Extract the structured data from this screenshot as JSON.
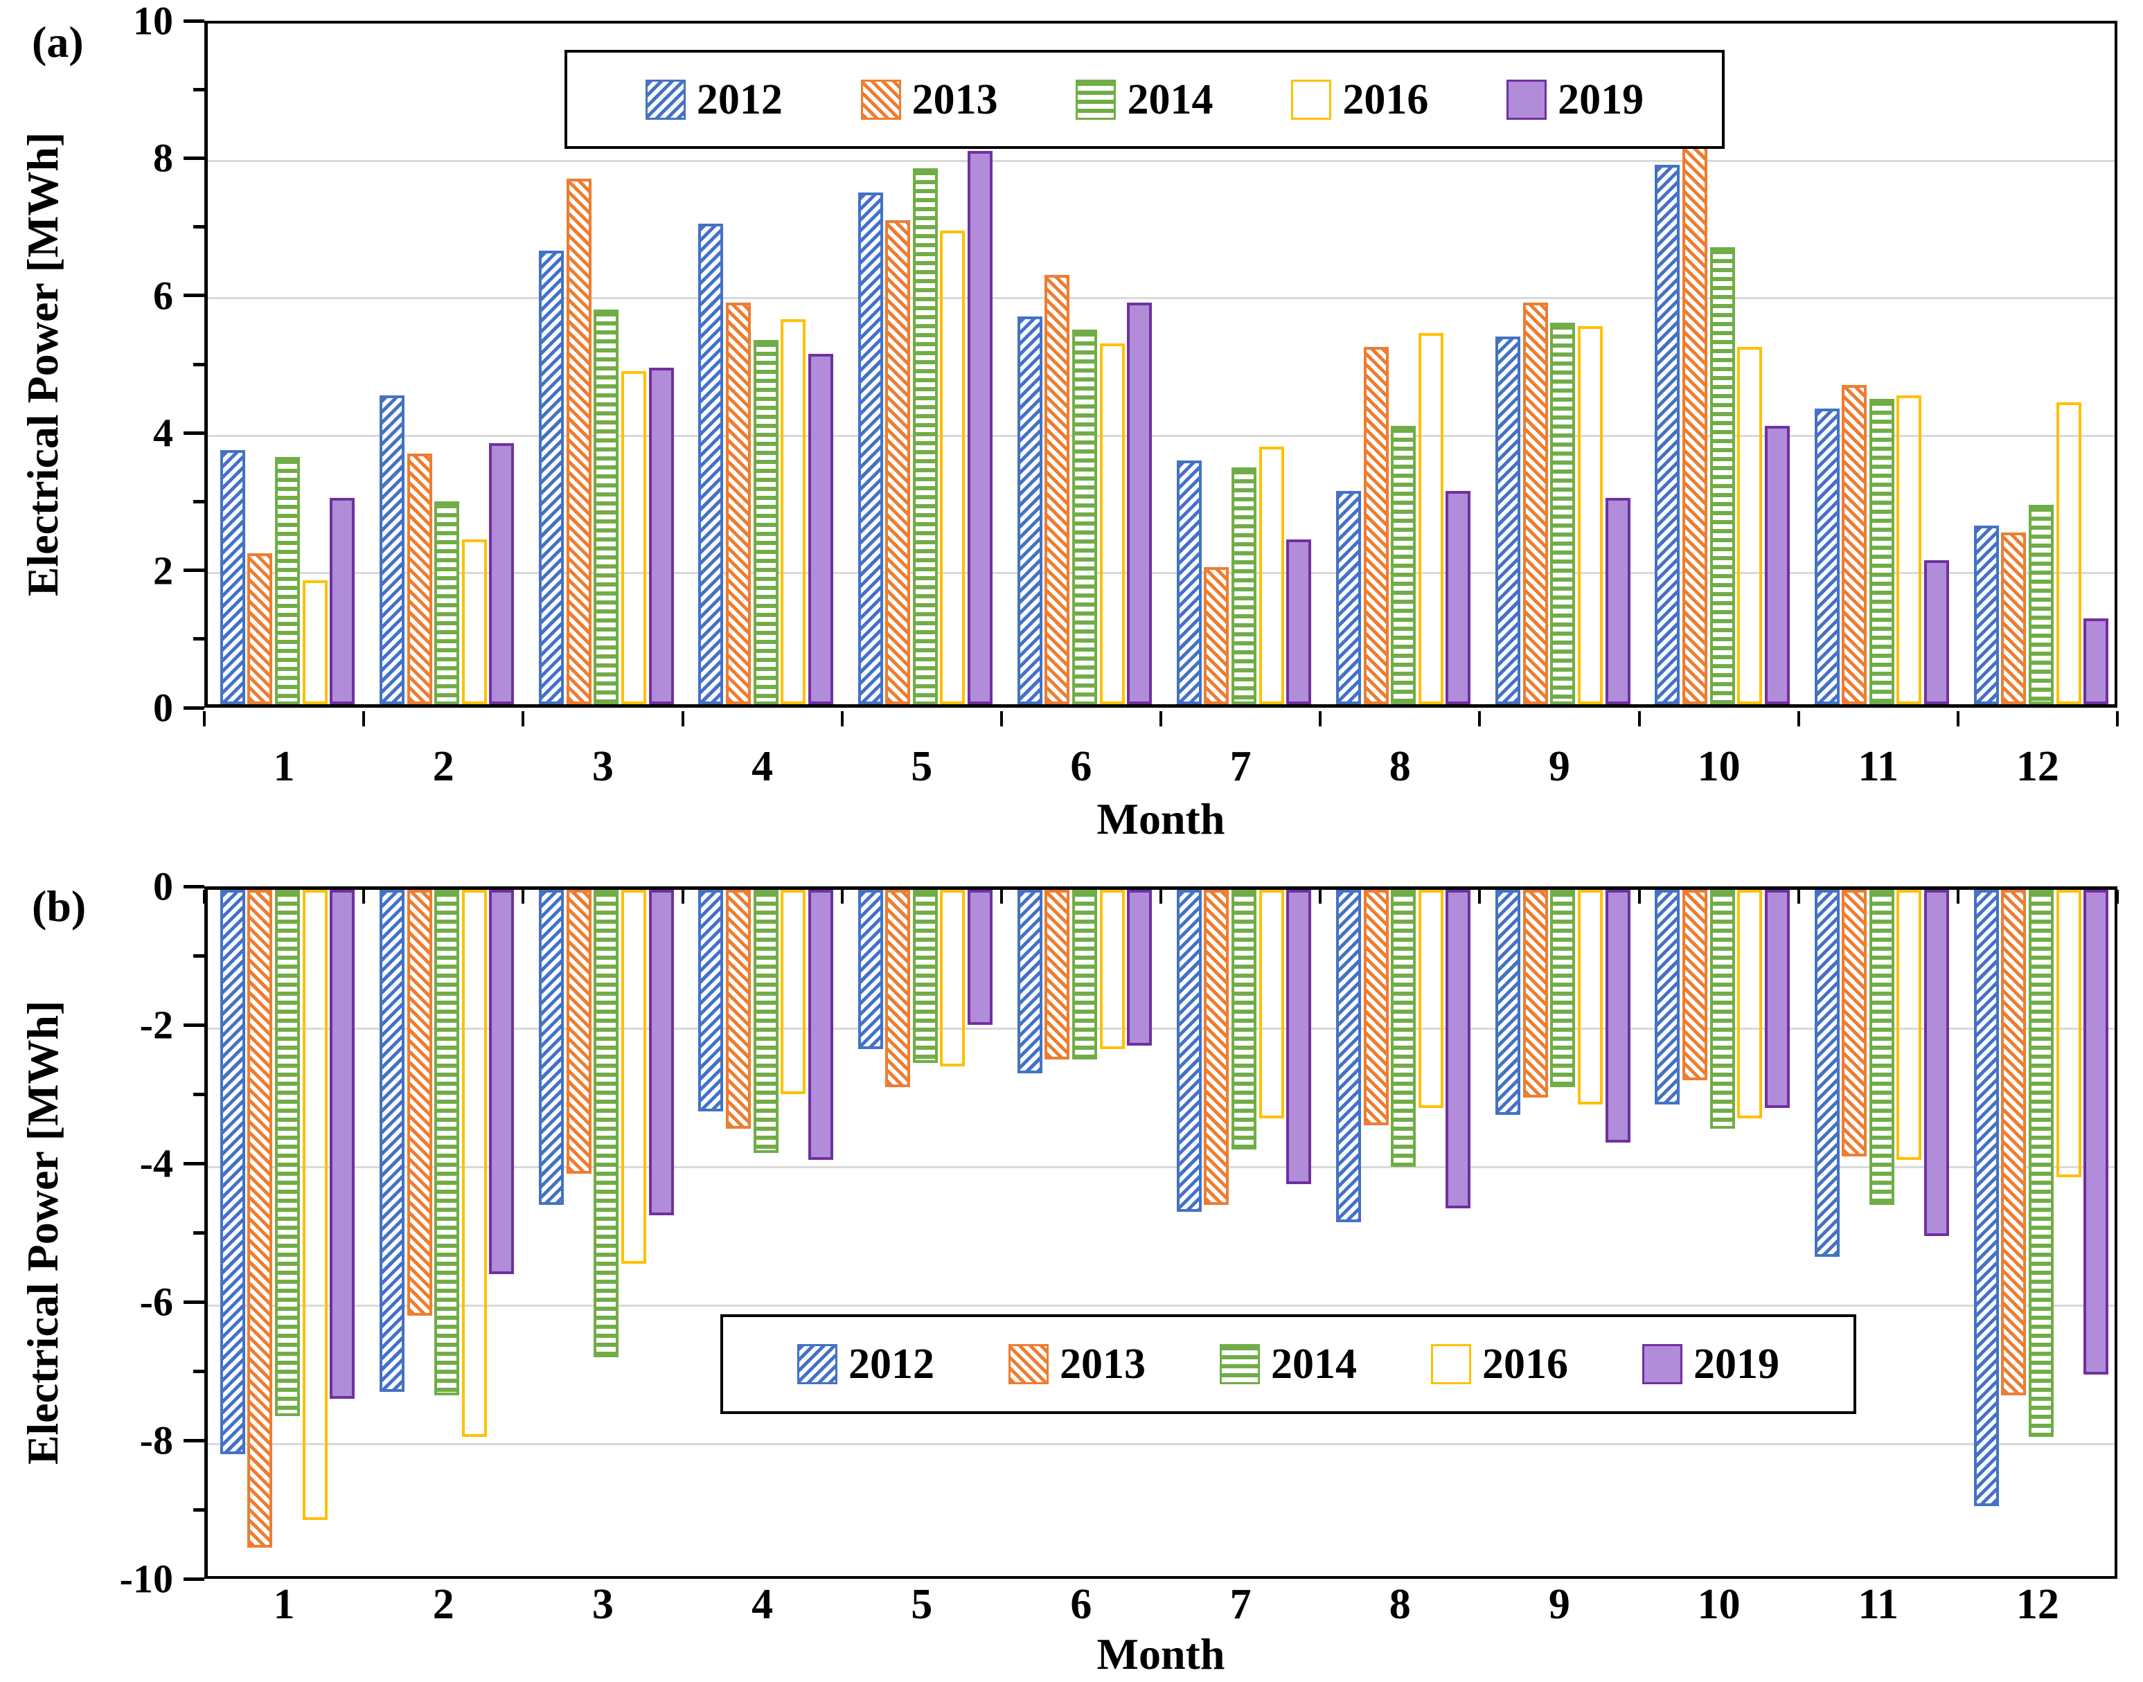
{
  "colors": {
    "blue": "#4472C4",
    "orange": "#ED7D31",
    "green": "#70AD47",
    "yellow": "#FFC000",
    "purple_fill": "#B08CD9",
    "purple_border": "#7030A0",
    "gridline": "#D9D9D9",
    "axis": "#000000"
  },
  "chart_data": [
    {
      "id": "a",
      "panel_label": "(a)",
      "type": "bar",
      "xlabel": "Month",
      "ylabel": "Electrical Power [MWh]",
      "ylim": [
        0,
        10
      ],
      "yticks_major": [
        0,
        2,
        4,
        6,
        8,
        10
      ],
      "yticks_minor": [
        1,
        3,
        5,
        7,
        9
      ],
      "grid_values": [
        2,
        4,
        6,
        8
      ],
      "grid": "on",
      "legend_position": "top-center",
      "categories": [
        "1",
        "2",
        "3",
        "4",
        "5",
        "6",
        "7",
        "8",
        "9",
        "10",
        "11",
        "12"
      ],
      "series": [
        {
          "name": "2012",
          "pattern": "diag-up",
          "color": "#4472C4",
          "values": [
            3.7,
            4.5,
            6.6,
            7.0,
            7.45,
            5.65,
            3.55,
            3.1,
            5.35,
            7.85,
            4.3,
            2.6
          ]
        },
        {
          "name": "2013",
          "pattern": "diag-down",
          "color": "#ED7D31",
          "values": [
            2.2,
            3.65,
            7.65,
            5.85,
            7.05,
            6.25,
            2.0,
            5.2,
            5.85,
            8.2,
            4.65,
            2.5
          ]
        },
        {
          "name": "2014",
          "pattern": "hlines",
          "color": "#70AD47",
          "values": [
            3.6,
            2.95,
            5.75,
            5.3,
            7.8,
            5.45,
            3.45,
            4.05,
            5.55,
            6.65,
            4.45,
            2.9
          ]
        },
        {
          "name": "2016",
          "pattern": "dots",
          "color": "#FFC000",
          "values": [
            1.8,
            2.4,
            4.85,
            5.6,
            6.9,
            5.25,
            3.75,
            5.4,
            5.5,
            5.2,
            4.5,
            4.4
          ]
        },
        {
          "name": "2019",
          "pattern": "solid",
          "color": "#B08CD9",
          "border_color": "#7030A0",
          "values": [
            3.0,
            3.8,
            4.9,
            5.1,
            8.05,
            5.85,
            2.4,
            3.1,
            3.0,
            4.05,
            2.1,
            1.25
          ]
        }
      ]
    },
    {
      "id": "b",
      "panel_label": "(b)",
      "type": "bar",
      "xlabel": "Month",
      "ylabel": "Electrical Power [MWh]",
      "ylim": [
        -10,
        0
      ],
      "yticks_major": [
        0,
        -2,
        -4,
        -6,
        -8,
        -10
      ],
      "yticks_minor": [
        -1,
        -3,
        -5,
        -7,
        -9
      ],
      "grid_values": [
        -2,
        -4,
        -6,
        -8
      ],
      "grid": "on",
      "legend_position": "bottom-center",
      "categories": [
        "1",
        "2",
        "3",
        "4",
        "5",
        "6",
        "7",
        "8",
        "9",
        "10",
        "11",
        "12"
      ],
      "series": [
        {
          "name": "2012",
          "pattern": "diag-up",
          "color": "#4472C4",
          "values": [
            -8.15,
            -7.25,
            -4.55,
            -3.2,
            -2.3,
            -2.65,
            -4.65,
            -4.8,
            -3.25,
            -3.1,
            -5.3,
            -8.9
          ]
        },
        {
          "name": "2013",
          "pattern": "diag-down",
          "color": "#ED7D31",
          "values": [
            -9.5,
            -6.15,
            -4.1,
            -3.45,
            -2.85,
            -2.45,
            -4.55,
            -3.4,
            -3.0,
            -2.75,
            -3.85,
            -7.3
          ]
        },
        {
          "name": "2014",
          "pattern": "hlines",
          "color": "#70AD47",
          "values": [
            -7.6,
            -7.3,
            -6.75,
            -3.8,
            -2.5,
            -2.45,
            -3.75,
            -4.0,
            -2.85,
            -3.45,
            -4.55,
            -7.9
          ]
        },
        {
          "name": "2016",
          "pattern": "dots",
          "color": "#FFC000",
          "values": [
            -9.1,
            -7.9,
            -5.4,
            -2.95,
            -2.55,
            -2.3,
            -3.3,
            -3.15,
            -3.1,
            -3.3,
            -3.9,
            -4.15
          ]
        },
        {
          "name": "2019",
          "pattern": "solid",
          "color": "#B08CD9",
          "border_color": "#7030A0",
          "values": [
            -7.35,
            -5.55,
            -4.7,
            -3.9,
            -1.95,
            -2.25,
            -4.25,
            -4.6,
            -3.65,
            -3.15,
            -5.0,
            -7.0
          ]
        }
      ]
    }
  ]
}
